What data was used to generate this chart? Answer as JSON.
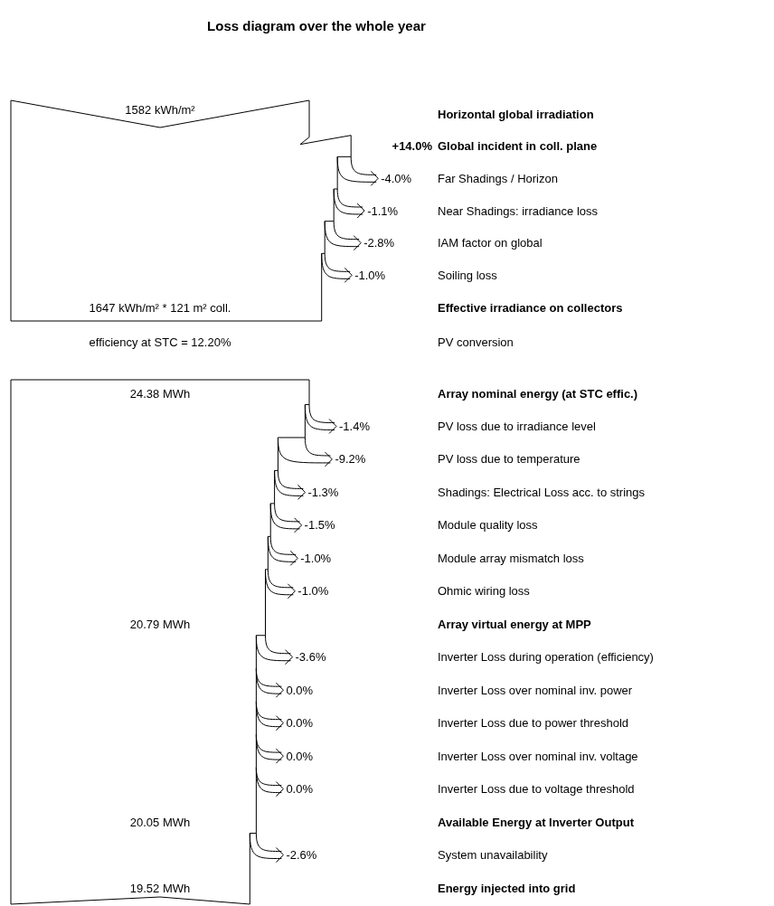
{
  "chart_data": [
    {
      "type": "other",
      "title": "Loss diagram over the whole year",
      "categories": [
        "Horizontal global irradiation",
        "Global incident in coll. plane",
        "Far Shadings / Horizon",
        "Near Shadings: irradiance loss",
        "IAM factor on global",
        "Soiling loss",
        "Effective irradiance on collectors"
      ],
      "values": [
        null,
        14.0,
        -4.0,
        -1.1,
        -2.8,
        -1.0,
        null
      ],
      "value_labels": [
        "1582 kWh/m²",
        "+14.0%",
        "-4.0%",
        "-1.1%",
        "-2.8%",
        "-1.0%",
        "1647 kWh/m² * 121 m² coll."
      ],
      "annotations": [
        "efficiency at STC = 12.20%",
        "PV conversion"
      ]
    },
    {
      "type": "other",
      "categories": [
        "Array nominal energy (at STC effic.)",
        "PV loss due to irradiance level",
        "PV loss due to temperature",
        "Shadings: Electrical Loss acc. to strings",
        "Module quality loss",
        "Module array mismatch loss",
        "Ohmic wiring loss",
        "Array virtual energy at MPP",
        "Inverter Loss during operation (efficiency)",
        "Inverter Loss over nominal inv. power",
        "Inverter Loss due to power threshold",
        "Inverter Loss over nominal inv. voltage",
        "Inverter Loss due to voltage threshold",
        "Available Energy at Inverter Output",
        "System unavailability",
        "Energy injected into grid"
      ],
      "values": [
        null,
        -1.4,
        -9.2,
        -1.3,
        -1.5,
        -1.0,
        -1.0,
        null,
        -3.6,
        0.0,
        0.0,
        0.0,
        0.0,
        null,
        -2.6,
        null
      ],
      "value_labels": [
        "24.38 MWh",
        "-1.4%",
        "-9.2%",
        "-1.3%",
        "-1.5%",
        "-1.0%",
        "-1.0%",
        "20.79 MWh",
        "-3.6%",
        "0.0%",
        "0.0%",
        "0.0%",
        "0.0%",
        "20.05 MWh",
        "-2.6%",
        "19.52 MWh"
      ]
    }
  ]
}
